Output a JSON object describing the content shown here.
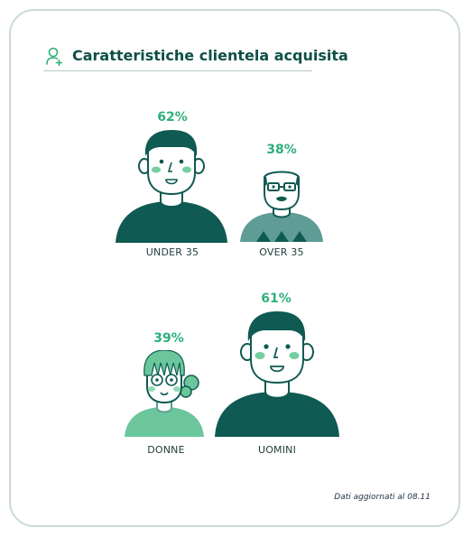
{
  "header": {
    "title": "Caratteristiche clientela acquisita",
    "icon": "user-add-icon"
  },
  "figures": [
    {
      "id": "under35",
      "percent": "62%",
      "label": "UNDER 35"
    },
    {
      "id": "over35",
      "percent": "38%",
      "label": "OVER 35"
    },
    {
      "id": "donne",
      "percent": "39%",
      "label": "DONNE"
    },
    {
      "id": "uomini",
      "percent": "61%",
      "label": "UOMINI"
    }
  ],
  "footnote": "Dati aggiornati al 08.11",
  "colors": {
    "dark_teal": "#0f5a52",
    "light_teal": "#5e9c95",
    "mint": "#6cc69b",
    "accent": "#2db07c"
  }
}
